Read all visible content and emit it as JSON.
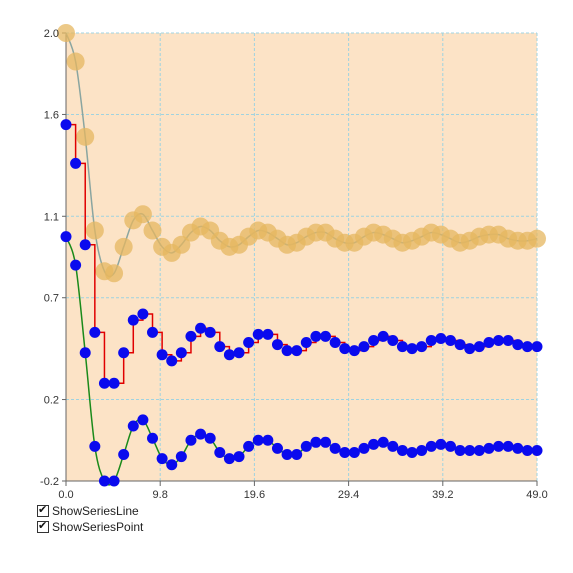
{
  "options": {
    "show_series_line": {
      "label": "ShowSeriesLine",
      "checked": true
    },
    "show_series_point": {
      "label": "ShowSeriesPoint",
      "checked": true
    }
  },
  "colors": {
    "plot_background": "#fce3c6",
    "grid": "#9fd3e0",
    "series_1_line": "#8aa5a0",
    "series_1_point": "#e5b760",
    "series_2_line": "#e00000",
    "series_3_line": "#1a8a1a",
    "point": "#0a0aee"
  },
  "chart_data": {
    "type": "line",
    "title": "",
    "xlabel": "",
    "ylabel": "",
    "xlim": [
      0,
      49.0
    ],
    "ylim": [
      -0.2,
      2.0
    ],
    "grid": true,
    "x_ticks": [
      "0.0",
      "9.8",
      "19.6",
      "29.4",
      "39.2",
      "49.0"
    ],
    "y_ticks": [
      "-0.2",
      "0.2",
      "0.7",
      "1.1",
      "1.6",
      "2.0"
    ],
    "series": [
      {
        "style": "smooth-line-with-large-points",
        "x": [
          0,
          1,
          2,
          3,
          4,
          5,
          6,
          7,
          8,
          9,
          10,
          11,
          12,
          13,
          14,
          15,
          16,
          17,
          18,
          19,
          20,
          21,
          22,
          23,
          24,
          25,
          26,
          27,
          28,
          29,
          30,
          31,
          32,
          33,
          34,
          35,
          36,
          37,
          38,
          39,
          40,
          41,
          42,
          43,
          44,
          45,
          46,
          47,
          48,
          49
        ],
        "y": [
          2.0,
          1.86,
          1.49,
          1.03,
          0.83,
          0.82,
          0.95,
          1.08,
          1.11,
          1.03,
          0.95,
          0.92,
          0.96,
          1.02,
          1.05,
          1.03,
          0.98,
          0.95,
          0.96,
          1.0,
          1.03,
          1.02,
          0.99,
          0.96,
          0.97,
          1.0,
          1.02,
          1.02,
          0.99,
          0.97,
          0.97,
          1.0,
          1.02,
          1.01,
          0.99,
          0.97,
          0.98,
          1.0,
          1.02,
          1.01,
          0.99,
          0.97,
          0.98,
          1.0,
          1.01,
          1.01,
          0.99,
          0.98,
          0.98,
          0.99
        ]
      },
      {
        "style": "step-line-with-points",
        "x": [
          0,
          1,
          2,
          3,
          4,
          5,
          6,
          7,
          8,
          9,
          10,
          11,
          12,
          13,
          14,
          15,
          16,
          17,
          18,
          19,
          20,
          21,
          22,
          23,
          24,
          25,
          26,
          27,
          28,
          29,
          30,
          31,
          32,
          33,
          34,
          35,
          36,
          37,
          38,
          39,
          40,
          41,
          42,
          43,
          44,
          45,
          46,
          47,
          48,
          49
        ],
        "y": [
          1.55,
          1.36,
          0.96,
          0.53,
          0.28,
          0.28,
          0.43,
          0.59,
          0.62,
          0.53,
          0.42,
          0.39,
          0.43,
          0.51,
          0.55,
          0.53,
          0.46,
          0.42,
          0.43,
          0.48,
          0.52,
          0.52,
          0.47,
          0.44,
          0.44,
          0.48,
          0.51,
          0.51,
          0.48,
          0.45,
          0.44,
          0.46,
          0.49,
          0.51,
          0.49,
          0.46,
          0.45,
          0.46,
          0.49,
          0.5,
          0.49,
          0.47,
          0.45,
          0.46,
          0.48,
          0.49,
          0.49,
          0.47,
          0.46,
          0.46
        ]
      },
      {
        "style": "smooth-line-with-points",
        "x": [
          0,
          1,
          2,
          3,
          4,
          5,
          6,
          7,
          8,
          9,
          10,
          11,
          12,
          13,
          14,
          15,
          16,
          17,
          18,
          19,
          20,
          21,
          22,
          23,
          24,
          25,
          26,
          27,
          28,
          29,
          30,
          31,
          32,
          33,
          34,
          35,
          36,
          37,
          38,
          39,
          40,
          41,
          42,
          43,
          44,
          45,
          46,
          47,
          48,
          49
        ],
        "y": [
          1.0,
          0.86,
          0.43,
          -0.03,
          -0.2,
          -0.2,
          -0.07,
          0.07,
          0.1,
          0.01,
          -0.09,
          -0.12,
          -0.08,
          0.0,
          0.03,
          0.01,
          -0.06,
          -0.09,
          -0.08,
          -0.03,
          0.0,
          0.0,
          -0.04,
          -0.07,
          -0.07,
          -0.03,
          -0.01,
          -0.01,
          -0.04,
          -0.06,
          -0.06,
          -0.04,
          -0.02,
          -0.01,
          -0.03,
          -0.05,
          -0.06,
          -0.05,
          -0.03,
          -0.02,
          -0.03,
          -0.05,
          -0.05,
          -0.05,
          -0.04,
          -0.03,
          -0.03,
          -0.04,
          -0.05,
          -0.05
        ]
      }
    ]
  }
}
